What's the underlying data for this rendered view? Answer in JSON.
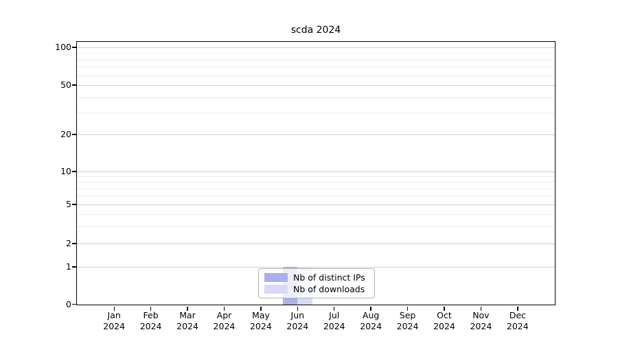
{
  "chart_data": {
    "type": "bar",
    "title": "scda 2024",
    "categories": [
      "Jan",
      "Feb",
      "Mar",
      "Apr",
      "May",
      "Jun",
      "Jul",
      "Aug",
      "Sep",
      "Oct",
      "Nov",
      "Dec"
    ],
    "x_tick_year": "2024",
    "series": [
      {
        "name": "Nb of distinct IPs",
        "color": "#aab0ec",
        "values": [
          0,
          0,
          0,
          0,
          0,
          1,
          0,
          0,
          0,
          0,
          0,
          0
        ]
      },
      {
        "name": "Nb of downloads",
        "color": "#d8dbf7",
        "values": [
          0,
          0,
          0,
          0,
          0,
          1,
          0,
          0,
          0,
          0,
          0,
          0
        ]
      }
    ],
    "y_axis": {
      "scale": "symlog",
      "major_ticks": [
        0,
        1,
        2,
        5,
        10,
        20,
        50,
        100
      ],
      "minor_gridlines": [
        3,
        4,
        6,
        7,
        8,
        9,
        30,
        40,
        60,
        70,
        80,
        90
      ],
      "ylim": [
        0,
        110
      ]
    },
    "legend": {
      "position": "lower center",
      "entries": [
        "Nb of distinct IPs",
        "Nb of downloads"
      ]
    },
    "grid": {
      "enabled": true,
      "major_color": "#cfcfcf",
      "minor_color": "#ededed"
    }
  }
}
